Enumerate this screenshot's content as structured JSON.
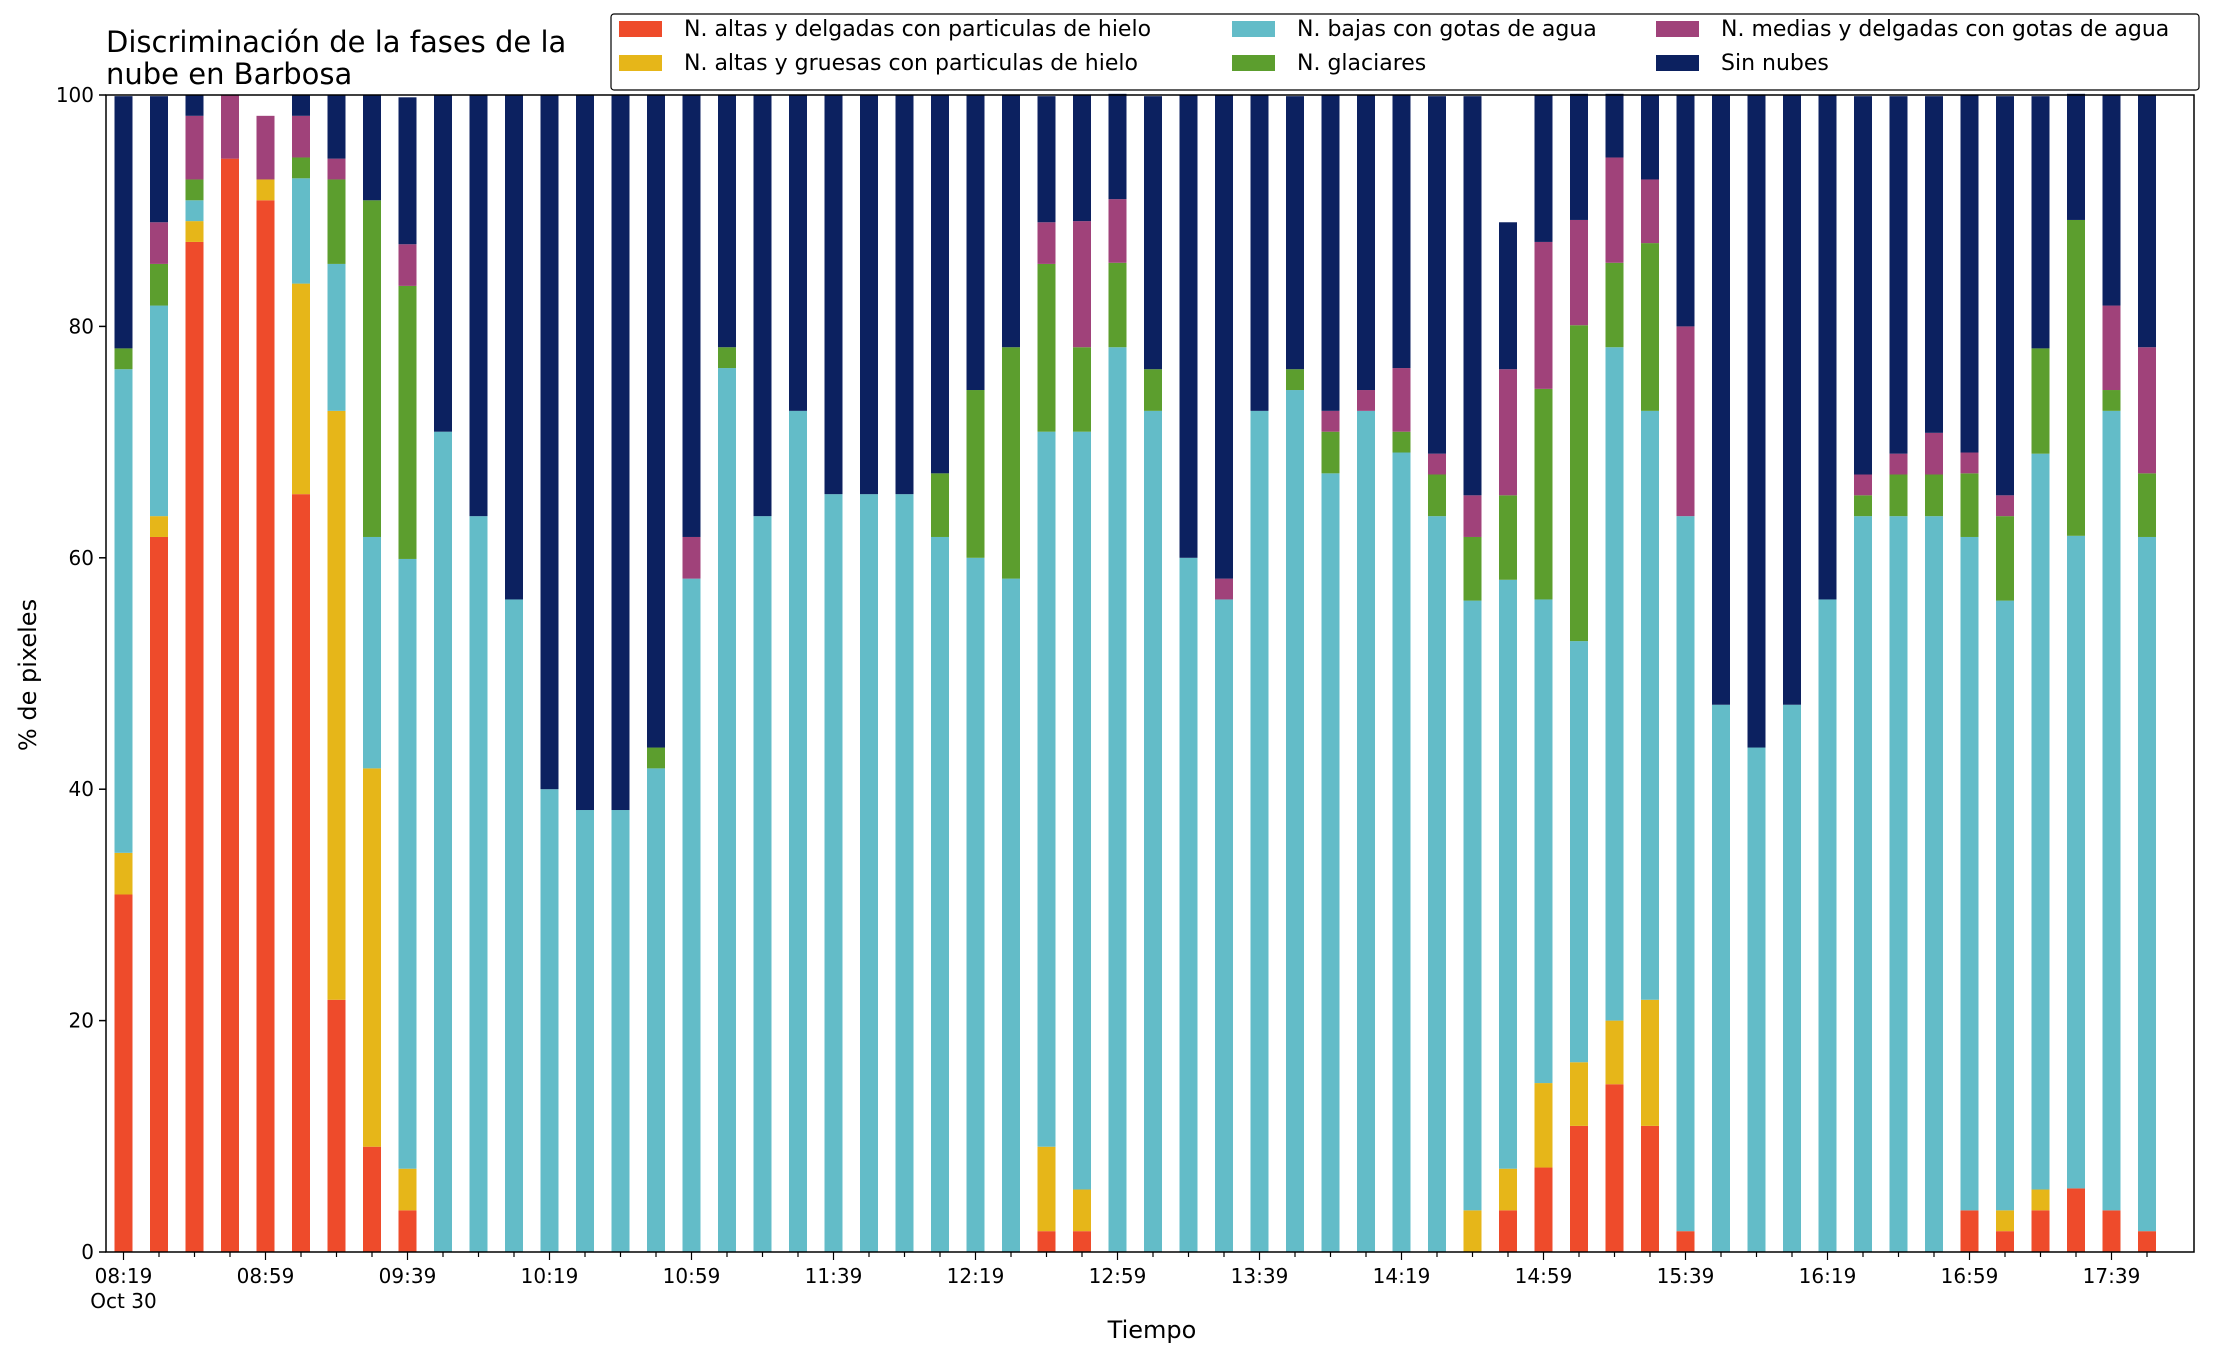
{
  "chart_data": {
    "type": "bar",
    "stacked": true,
    "title_lines": [
      "Discriminación de la fases de la",
      "nube en Barbosa"
    ],
    "xlabel": "Tiempo",
    "ylabel": "% de pixeles",
    "ylim": [
      0,
      100
    ],
    "yticks": [
      0,
      20,
      40,
      60,
      80,
      100
    ],
    "grid": false,
    "legend_position": "top-right",
    "x_tick_labels": [
      "08:19",
      "08:59",
      "09:39",
      "10:19",
      "10:59",
      "11:39",
      "12:19",
      "12:59",
      "13:39",
      "14:19",
      "14:59",
      "15:39",
      "16:19",
      "16:59",
      "17:39"
    ],
    "x_first_tick_sublabel": "Oct 30",
    "categories": [
      "08:19",
      "08:29",
      "08:39",
      "08:49",
      "08:59",
      "09:09",
      "09:19",
      "09:29",
      "09:39",
      "09:49",
      "09:59",
      "10:09",
      "10:19",
      "10:29",
      "10:39",
      "10:49",
      "10:59",
      "11:09",
      "11:19",
      "11:29",
      "11:39",
      "11:49",
      "11:59",
      "12:09",
      "12:19",
      "12:29",
      "12:39",
      "12:49",
      "12:59",
      "13:09",
      "13:19",
      "13:29",
      "13:39",
      "13:49",
      "13:59",
      "14:09",
      "14:19",
      "14:29",
      "14:39",
      "14:49",
      "14:59",
      "15:09",
      "15:19",
      "15:29",
      "15:39",
      "15:49",
      "15:59",
      "16:09",
      "16:19",
      "16:29",
      "16:39",
      "16:49",
      "16:59",
      "17:09",
      "17:19",
      "17:29",
      "17:39",
      "17:49"
    ],
    "series": [
      {
        "name": "N. altas y delgadas con particulas de hielo",
        "color": "#ee4b2b",
        "values": [
          30.9,
          61.8,
          87.3,
          94.5,
          90.9,
          65.5,
          21.8,
          9.1,
          3.6,
          0,
          0,
          0,
          0,
          0,
          0,
          0,
          0,
          0,
          0,
          0,
          0,
          0,
          0,
          0,
          0,
          0,
          1.8,
          1.8,
          0,
          0,
          0,
          0,
          0,
          0,
          0,
          0,
          0,
          0,
          0,
          3.6,
          7.3,
          10.9,
          14.5,
          10.9,
          1.8,
          0,
          0,
          0,
          0,
          0,
          0,
          0,
          3.6,
          1.8,
          3.6,
          5.5,
          3.6,
          1.8
        ]
      },
      {
        "name": "N. altas y gruesas con particulas de hielo",
        "color": "#e6b619",
        "values": [
          3.6,
          1.8,
          1.8,
          0,
          1.8,
          18.2,
          50.9,
          32.7,
          3.6,
          0,
          0,
          0,
          0,
          0,
          0,
          0,
          0,
          0,
          0,
          0,
          0,
          0,
          0,
          0,
          0,
          0,
          7.3,
          3.6,
          0,
          0,
          0,
          0,
          0,
          0,
          0,
          0,
          0,
          0,
          3.6,
          3.6,
          7.3,
          5.5,
          5.5,
          10.9,
          0,
          0,
          0,
          0,
          0,
          0,
          0,
          0,
          0,
          1.8,
          1.8,
          0,
          0,
          0
        ]
      },
      {
        "name": "N. bajas con gotas de agua",
        "color": "#63bcc8",
        "values": [
          41.8,
          18.2,
          1.8,
          0,
          0,
          9.1,
          12.7,
          20.0,
          52.7,
          70.9,
          63.6,
          56.4,
          40.0,
          38.2,
          38.2,
          41.8,
          58.2,
          76.4,
          63.6,
          72.7,
          65.5,
          65.5,
          65.5,
          61.8,
          60.0,
          58.2,
          61.8,
          65.5,
          78.2,
          72.7,
          60.0,
          56.4,
          72.7,
          74.5,
          67.3,
          72.7,
          69.1,
          63.6,
          52.7,
          50.9,
          41.8,
          36.4,
          58.2,
          50.9,
          61.8,
          47.3,
          43.6,
          47.3,
          56.4,
          63.6,
          63.6,
          63.6,
          58.2,
          52.7,
          63.6,
          56.4,
          69.1,
          60.0
        ]
      },
      {
        "name": "N. glaciares",
        "color": "#5c9e2e",
        "values": [
          1.8,
          3.6,
          1.8,
          0,
          0,
          1.8,
          7.3,
          29.1,
          23.6,
          0,
          0,
          0,
          0,
          0,
          0,
          1.8,
          0,
          1.8,
          0,
          0,
          0,
          0,
          0,
          5.5,
          14.5,
          20.0,
          14.5,
          7.3,
          7.3,
          3.6,
          0,
          0,
          0,
          1.8,
          3.6,
          0,
          1.8,
          3.6,
          5.5,
          7.3,
          18.2,
          27.3,
          7.3,
          14.5,
          0,
          0,
          0,
          0,
          0,
          1.8,
          3.6,
          3.6,
          5.5,
          7.3,
          9.1,
          27.3,
          1.8,
          5.5
        ]
      },
      {
        "name": "N. medias y delgadas con gotas de agua",
        "color": "#a0427a",
        "values": [
          0,
          3.6,
          5.5,
          5.5,
          5.5,
          3.6,
          1.8,
          0,
          3.6,
          0,
          0,
          0,
          0,
          0,
          0,
          0,
          3.6,
          0,
          0,
          0,
          0,
          0,
          0,
          0,
          0,
          0,
          3.6,
          10.9,
          5.5,
          0,
          0,
          1.8,
          0,
          0,
          1.8,
          1.8,
          5.5,
          1.8,
          3.6,
          10.9,
          12.7,
          9.1,
          9.1,
          5.5,
          16.4,
          0,
          0,
          0,
          0,
          1.8,
          1.8,
          3.6,
          1.8,
          1.8,
          0,
          0,
          7.3,
          10.9
        ]
      },
      {
        "name": "Sin nubes",
        "color": "#0c2160",
        "values": [
          21.8,
          10.9,
          1.8,
          0,
          0,
          1.8,
          5.5,
          9.1,
          12.7,
          29.1,
          36.4,
          43.6,
          60.0,
          61.8,
          61.8,
          56.4,
          38.2,
          21.8,
          36.4,
          27.3,
          34.5,
          34.5,
          34.5,
          32.7,
          25.5,
          21.8,
          10.9,
          10.9,
          9.1,
          23.6,
          40.0,
          41.8,
          27.3,
          23.6,
          27.3,
          25.5,
          23.6,
          30.9,
          34.5,
          12.7,
          12.7,
          10.9,
          5.5,
          7.3,
          20.0,
          52.7,
          56.4,
          52.7,
          43.6,
          32.7,
          30.9,
          29.1,
          30.9,
          34.5,
          21.8,
          10.9,
          18.2,
          21.8
        ]
      }
    ]
  }
}
